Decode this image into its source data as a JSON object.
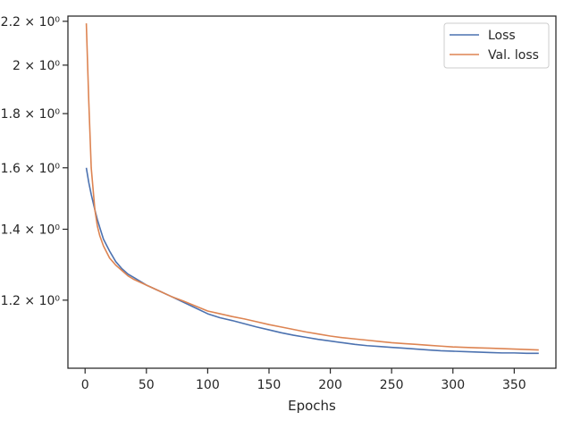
{
  "chart_data": {
    "type": "line",
    "title": "",
    "xlabel": "Epochs",
    "ylabel": "",
    "xlim": [
      -14,
      384
    ],
    "ylim": [
      1.035,
      2.225
    ],
    "yscale": "log",
    "grid": false,
    "legend_position": "top-right",
    "x_ticks": [
      0,
      50,
      100,
      150,
      200,
      250,
      300,
      350
    ],
    "x_tick_labels": [
      "0",
      "50",
      "100",
      "150",
      "200",
      "250",
      "300",
      "350"
    ],
    "y_ticks": [
      1.2,
      1.4,
      1.6,
      1.8,
      2.0,
      2.2
    ],
    "y_tick_labels": [
      "1.2 × 10⁰",
      "1.4 × 10⁰",
      "1.6 × 10⁰",
      "1.8 × 10⁰",
      "2 × 10⁰",
      "2.2 × 10⁰"
    ],
    "x": [
      1,
      3,
      5,
      8,
      10,
      12,
      15,
      20,
      25,
      30,
      35,
      40,
      50,
      60,
      70,
      80,
      90,
      100,
      110,
      120,
      130,
      140,
      150,
      160,
      170,
      180,
      190,
      200,
      210,
      220,
      230,
      240,
      250,
      260,
      270,
      280,
      290,
      300,
      310,
      320,
      330,
      340,
      350,
      360,
      370
    ],
    "series": [
      {
        "name": "Loss",
        "color": "#4c72b0",
        "values": [
          1.6,
          1.55,
          1.51,
          1.46,
          1.43,
          1.405,
          1.37,
          1.335,
          1.305,
          1.285,
          1.27,
          1.26,
          1.24,
          1.225,
          1.21,
          1.195,
          1.18,
          1.165,
          1.155,
          1.148,
          1.14,
          1.132,
          1.125,
          1.118,
          1.112,
          1.107,
          1.102,
          1.098,
          1.094,
          1.09,
          1.087,
          1.085,
          1.083,
          1.081,
          1.079,
          1.077,
          1.075,
          1.074,
          1.073,
          1.072,
          1.071,
          1.07,
          1.07,
          1.069,
          1.069
        ]
      },
      {
        "name": "Val. loss",
        "color": "#dd8452",
        "values": [
          2.19,
          1.85,
          1.6,
          1.46,
          1.41,
          1.38,
          1.35,
          1.315,
          1.295,
          1.28,
          1.265,
          1.255,
          1.24,
          1.225,
          1.21,
          1.198,
          1.185,
          1.172,
          1.165,
          1.158,
          1.152,
          1.145,
          1.138,
          1.132,
          1.126,
          1.12,
          1.115,
          1.11,
          1.106,
          1.103,
          1.1,
          1.097,
          1.094,
          1.092,
          1.09,
          1.088,
          1.086,
          1.084,
          1.083,
          1.082,
          1.081,
          1.08,
          1.079,
          1.078,
          1.077
        ]
      }
    ]
  }
}
